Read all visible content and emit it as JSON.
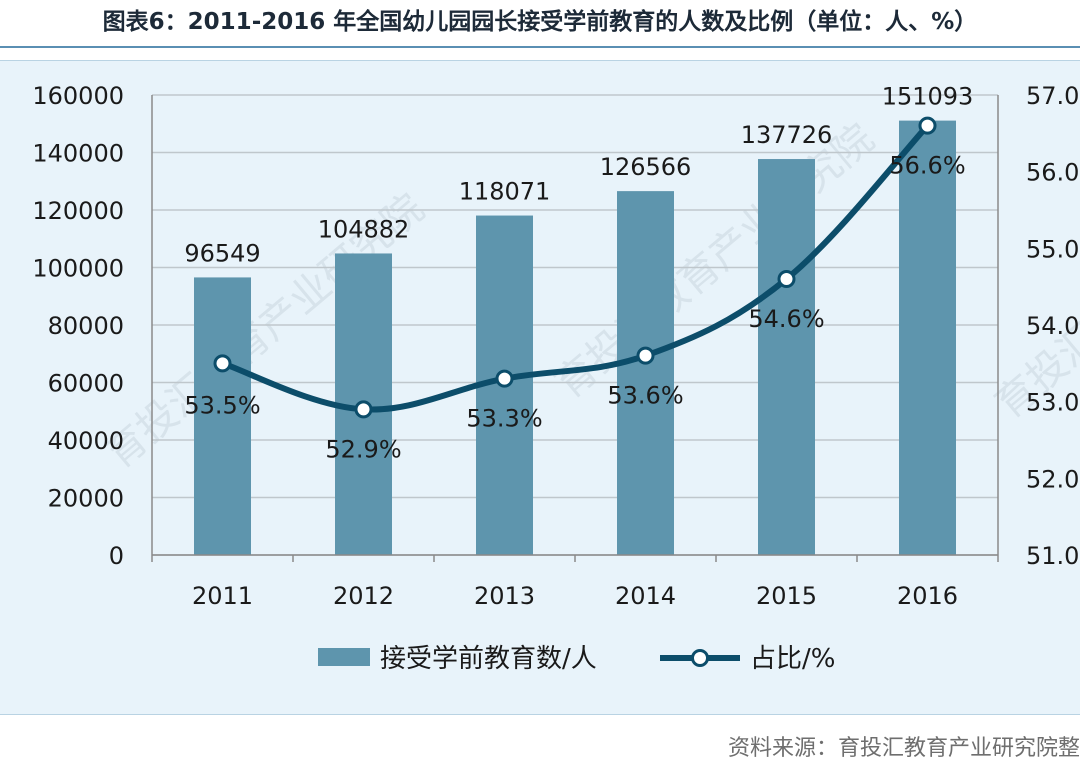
{
  "title": "图表6：2011-2016 年全国幼儿园园长接受学前教育的人数及比例（单位：人、%）",
  "source": "资料来源：育投汇教育产业研究院整",
  "watermark": "育投汇教育产业研究院",
  "colors": {
    "bar": "#5e95ad",
    "line": "#0c4d6a",
    "grid": "#bfc7cc",
    "panel": "#e8f3fa"
  },
  "chart_data": {
    "type": "bar",
    "categories": [
      "2011",
      "2012",
      "2013",
      "2014",
      "2015",
      "2016"
    ],
    "series": [
      {
        "name": "接受学前教育数/人",
        "type": "bar",
        "axis": "left",
        "values": [
          96549,
          104882,
          118071,
          126566,
          137726,
          151093
        ],
        "labels": [
          "96549",
          "104882",
          "118071",
          "126566",
          "137726",
          "151093"
        ]
      },
      {
        "name": "占比/%",
        "type": "line",
        "axis": "right",
        "values": [
          53.5,
          52.9,
          53.3,
          53.6,
          54.6,
          56.6
        ],
        "labels": [
          "53.5%",
          "52.9%",
          "53.3%",
          "53.6%",
          "54.6%",
          "56.6%"
        ]
      }
    ],
    "y_left": {
      "min": 0,
      "max": 160000,
      "ticks": [
        "0",
        "20000",
        "40000",
        "60000",
        "80000",
        "100000",
        "120000",
        "140000",
        "160000"
      ]
    },
    "y_right": {
      "min": 51,
      "max": 57,
      "ticks": [
        "51.0",
        "52.0",
        "53.0",
        "54.0",
        "55.0",
        "56.0",
        "57.0"
      ]
    },
    "grid": true,
    "legend_position": "bottom"
  }
}
